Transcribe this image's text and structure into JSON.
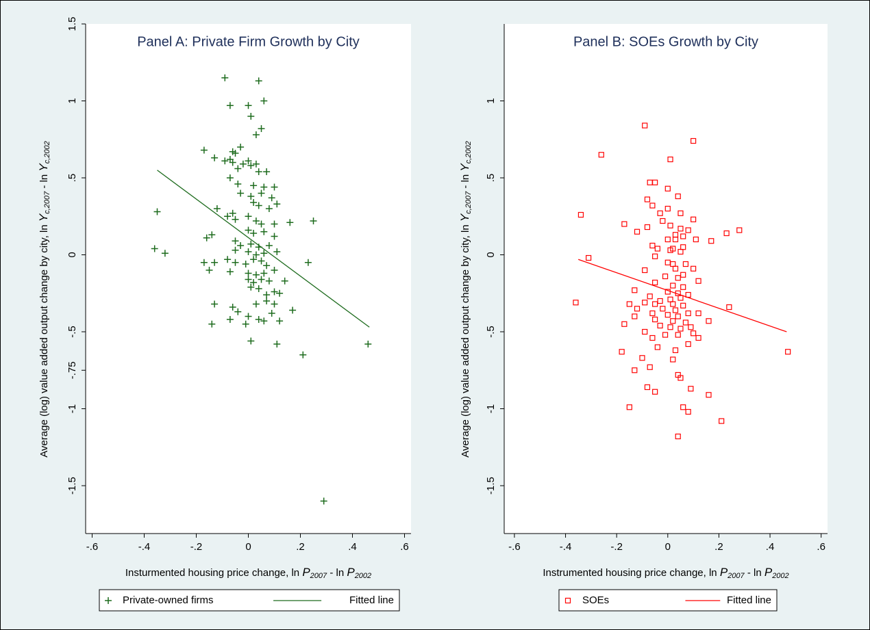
{
  "chart_data": [
    {
      "type": "scatter",
      "title": "Panel A: Private Firm Growth by City",
      "xlabel": [
        "Insturmented housing price change, ln ",
        "P",
        "2007",
        " - ln ",
        "P",
        "2002"
      ],
      "ylabel": [
        "Average (log) value added output change by city, ln ",
        "Y",
        "c,2007",
        " - ln ",
        "Y",
        "c,2002"
      ],
      "xlim": [
        -0.625,
        0.625
      ],
      "ylim": [
        -1.811,
        1.5
      ],
      "xticks": [
        {
          "value": -0.6,
          "label": "-.6"
        },
        {
          "value": -0.4,
          "label": "-.4"
        },
        {
          "value": -0.2,
          "label": "-.2"
        },
        0,
        {
          "value": 0.2,
          "label": ".2"
        },
        {
          "value": 0.4,
          "label": ".4"
        },
        {
          "value": 0.6,
          "label": ".6"
        }
      ],
      "yticks": [
        1.5,
        1,
        {
          "value": 0.5,
          "label": ".5"
        },
        0,
        {
          "value": -0.5,
          "label": "-.5"
        },
        {
          "value": -0.75,
          "label": "-.75"
        },
        -1,
        -1.5
      ],
      "series": [
        {
          "name": "Private-owned firms",
          "color": "#1d6b1d",
          "marker": "plus",
          "x": [
            -0.09,
            0.04,
            -0.07,
            0,
            0.06,
            0.01,
            0.05,
            0.03,
            -0.03,
            -0.17,
            -0.06,
            -0.13,
            -0.05,
            -0.07,
            -0.09,
            0,
            -0.02,
            0.01,
            0.03,
            -0.06,
            -0.04,
            0.04,
            0.07,
            -0.07,
            -0.04,
            0.02,
            0.06,
            0.1,
            -0.03,
            0.01,
            0.05,
            0.09,
            0.02,
            0.04,
            0.11,
            0.08,
            -0.12,
            -0.35,
            -0.08,
            -0.06,
            -0.05,
            0,
            0.03,
            0.05,
            0.1,
            0.16,
            0.25,
            -0.14,
            -0.16,
            0,
            0.02,
            0.06,
            0.1,
            -0.05,
            -0.03,
            0.01,
            0.04,
            0.08,
            -0.36,
            -0.32,
            -0.05,
            0,
            0.03,
            0.06,
            0.11,
            -0.17,
            -0.13,
            -0.08,
            -0.05,
            -0.01,
            0.02,
            0.05,
            0.07,
            0.23,
            -0.15,
            -0.07,
            0,
            0.03,
            0.06,
            0.1,
            0,
            0.02,
            0.05,
            0.08,
            0.14,
            0.01,
            0.04,
            0.07,
            0.1,
            0.12,
            0.17,
            -0.13,
            -0.06,
            0.03,
            0.07,
            0.1,
            -0.04,
            0,
            0.04,
            0.06,
            0.09,
            0.12,
            -0.07,
            -0.14,
            -0.01,
            0.01,
            0.11,
            0.21,
            0.46,
            0.29
          ],
          "values": [
            1.15,
            1.13,
            0.97,
            0.97,
            1.0,
            0.9,
            0.82,
            0.78,
            0.7,
            0.68,
            0.67,
            0.63,
            0.66,
            0.62,
            0.61,
            0.61,
            0.59,
            0.58,
            0.59,
            0.6,
            0.56,
            0.54,
            0.54,
            0.5,
            0.46,
            0.45,
            0.44,
            0.44,
            0.4,
            0.38,
            0.4,
            0.37,
            0.34,
            0.32,
            0.33,
            0.3,
            0.3,
            0.28,
            0.25,
            0.27,
            0.23,
            0.25,
            0.22,
            0.2,
            0.2,
            0.21,
            0.22,
            0.13,
            0.11,
            0.16,
            0.14,
            0.15,
            0.12,
            0.09,
            0.06,
            0.07,
            0.05,
            0.06,
            0.04,
            0.01,
            0.03,
            0.02,
            0,
            0.01,
            0.02,
            -0.05,
            -0.05,
            -0.03,
            -0.05,
            -0.06,
            -0.03,
            -0.04,
            -0.07,
            -0.05,
            -0.1,
            -0.11,
            -0.12,
            -0.13,
            -0.12,
            -0.1,
            -0.16,
            -0.18,
            -0.16,
            -0.17,
            -0.17,
            -0.21,
            -0.22,
            -0.26,
            -0.24,
            -0.25,
            -0.36,
            -0.32,
            -0.34,
            -0.32,
            -0.3,
            -0.32,
            -0.37,
            -0.4,
            -0.42,
            -0.43,
            -0.38,
            -0.43,
            -0.42,
            -0.45,
            -0.45,
            -0.56,
            -0.58,
            -0.65,
            -0.58,
            -1.6
          ]
        },
        {
          "name": "Fitted line",
          "color": "#1d6b1d",
          "marker": "line",
          "x": [
            -0.35,
            0.465
          ],
          "values": [
            0.55,
            -0.47
          ]
        }
      ]
    },
    {
      "type": "scatter",
      "title": "Panel B: SOEs Growth by City",
      "xlabel": [
        "Instrumented housing price change, ln ",
        "P",
        "2007",
        " - ln ",
        "P",
        "2002"
      ],
      "ylabel": [
        "Average (log) value added output change by city, ln ",
        "Y",
        "c,2007",
        " - ln ",
        "Y",
        "c,2002"
      ],
      "xlim": [
        -0.64,
        0.625
      ],
      "ylim": [
        -1.811,
        1.5
      ],
      "xticks": [
        {
          "value": -0.6,
          "label": "-.6"
        },
        {
          "value": -0.4,
          "label": "-.4"
        },
        {
          "value": -0.2,
          "label": "-.2"
        },
        0,
        {
          "value": 0.2,
          "label": ".2"
        },
        {
          "value": 0.4,
          "label": ".4"
        },
        {
          "value": 0.6,
          "label": ".6"
        }
      ],
      "yticks": [
        1,
        {
          "value": 0.5,
          "label": ".5"
        },
        0,
        {
          "value": -0.5,
          "label": "-.5"
        },
        -1,
        -1.5
      ],
      "series": [
        {
          "name": "SOEs",
          "color": "#ff0000",
          "marker": "square",
          "x": [
            -0.09,
            0.1,
            -0.26,
            0.01,
            -0.07,
            -0.05,
            0,
            -0.08,
            0.04,
            -0.06,
            0,
            -0.03,
            0.05,
            -0.34,
            -0.02,
            0.1,
            -0.17,
            0.01,
            0.05,
            0.08,
            0.28,
            0.23,
            -0.12,
            -0.08,
            0.03,
            0.06,
            0,
            0.03,
            0.11,
            0.17,
            -0.06,
            0.02,
            0.06,
            -0.04,
            0.01,
            0.05,
            -0.31,
            -0.05,
            0,
            0.02,
            0.07,
            -0.09,
            0.03,
            0.1,
            0.06,
            -0.01,
            0.04,
            0.12,
            -0.05,
            0.02,
            0.06,
            -0.13,
            0,
            0.04,
            0.08,
            -0.07,
            -0.03,
            0.01,
            0.05,
            -0.36,
            -0.15,
            -0.09,
            -0.05,
            0.02,
            0.06,
            0.24,
            -0.12,
            -0.02,
            0.03,
            0.08,
            -0.06,
            0,
            0.04,
            0.12,
            -0.13,
            -0.05,
            0.02,
            0.07,
            0.16,
            -0.17,
            -0.03,
            0.01,
            0.05,
            0.09,
            -0.09,
            -0.01,
            0.04,
            0.1,
            0.12,
            -0.06,
            0.08,
            -0.04,
            0.03,
            -0.18,
            0.47,
            -0.1,
            0.02,
            -0.07,
            -0.13,
            0.04,
            0.05,
            -0.08,
            0.09,
            -0.05,
            0.16,
            -0.15,
            0.06,
            0.08,
            0.21,
            0.04
          ],
          "values": [
            0.84,
            0.74,
            0.65,
            0.62,
            0.47,
            0.47,
            0.43,
            0.36,
            0.38,
            0.32,
            0.3,
            0.27,
            0.27,
            0.26,
            0.22,
            0.23,
            0.2,
            0.19,
            0.17,
            0.16,
            0.16,
            0.14,
            0.15,
            0.18,
            0.13,
            0.12,
            0.1,
            0.1,
            0.1,
            0.09,
            0.06,
            0.04,
            0.05,
            0.04,
            0.03,
            0.02,
            -0.02,
            -0.01,
            -0.05,
            -0.06,
            -0.06,
            -0.1,
            -0.09,
            -0.09,
            -0.13,
            -0.14,
            -0.15,
            -0.17,
            -0.18,
            -0.2,
            -0.21,
            -0.23,
            -0.24,
            -0.25,
            -0.26,
            -0.27,
            -0.3,
            -0.29,
            -0.28,
            -0.31,
            -0.32,
            -0.31,
            -0.32,
            -0.32,
            -0.33,
            -0.34,
            -0.35,
            -0.35,
            -0.36,
            -0.38,
            -0.38,
            -0.39,
            -0.4,
            -0.38,
            -0.4,
            -0.42,
            -0.43,
            -0.44,
            -0.43,
            -0.45,
            -0.46,
            -0.47,
            -0.48,
            -0.47,
            -0.5,
            -0.52,
            -0.52,
            -0.51,
            -0.54,
            -0.54,
            -0.58,
            -0.6,
            -0.62,
            -0.63,
            -0.63,
            -0.67,
            -0.68,
            -0.73,
            -0.75,
            -0.78,
            -0.8,
            -0.86,
            -0.87,
            -0.89,
            -0.91,
            -0.99,
            -0.99,
            -1.02,
            -1.08,
            -1.18
          ]
        },
        {
          "name": "Fitted line",
          "color": "#ff0000",
          "marker": "line",
          "x": [
            -0.35,
            0.465
          ],
          "values": [
            -0.03,
            -0.5
          ]
        }
      ]
    }
  ]
}
